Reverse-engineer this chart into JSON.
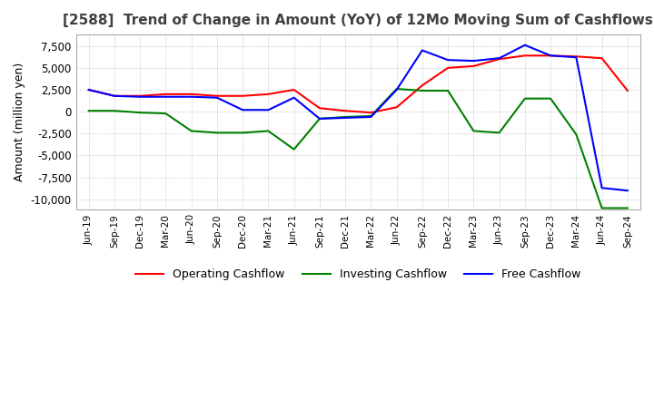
{
  "title": "[2588]  Trend of Change in Amount (YoY) of 12Mo Moving Sum of Cashflows",
  "ylabel": "Amount (million yen)",
  "ylim": [
    -11200,
    8800
  ],
  "yticks": [
    -10000,
    -7500,
    -5000,
    -2500,
    0,
    2500,
    5000,
    7500
  ],
  "x_labels": [
    "Jun-19",
    "Sep-19",
    "Dec-19",
    "Mar-20",
    "Jun-20",
    "Sep-20",
    "Dec-20",
    "Mar-21",
    "Jun-21",
    "Sep-21",
    "Dec-21",
    "Mar-22",
    "Jun-22",
    "Sep-22",
    "Dec-22",
    "Mar-23",
    "Jun-23",
    "Sep-23",
    "Dec-23",
    "Mar-24",
    "Jun-24",
    "Sep-24"
  ],
  "operating_cashflow": [
    2500,
    1800,
    1800,
    2000,
    2000,
    1800,
    1800,
    2000,
    2500,
    400,
    100,
    -100,
    500,
    3000,
    5000,
    5200,
    6000,
    6400,
    6400,
    6300,
    6100,
    2400
  ],
  "investing_cashflow": [
    100,
    100,
    -100,
    -200,
    -2200,
    -2400,
    -2400,
    -2200,
    -4300,
    -800,
    -600,
    -500,
    2600,
    2400,
    2400,
    -2200,
    -2400,
    1500,
    1500,
    -2600,
    -11000,
    -11000
  ],
  "free_cashflow": [
    2500,
    1800,
    1700,
    1700,
    1700,
    1600,
    200,
    200,
    1600,
    -800,
    -700,
    -600,
    2500,
    7000,
    5900,
    5800,
    6100,
    7600,
    6400,
    6200,
    -8700,
    -9000
  ],
  "operating_color": "#ff0000",
  "investing_color": "#008000",
  "free_color": "#0000ff",
  "bg_color": "#ffffff",
  "grid_color": "#aaaaaa",
  "title_color": "#404040"
}
